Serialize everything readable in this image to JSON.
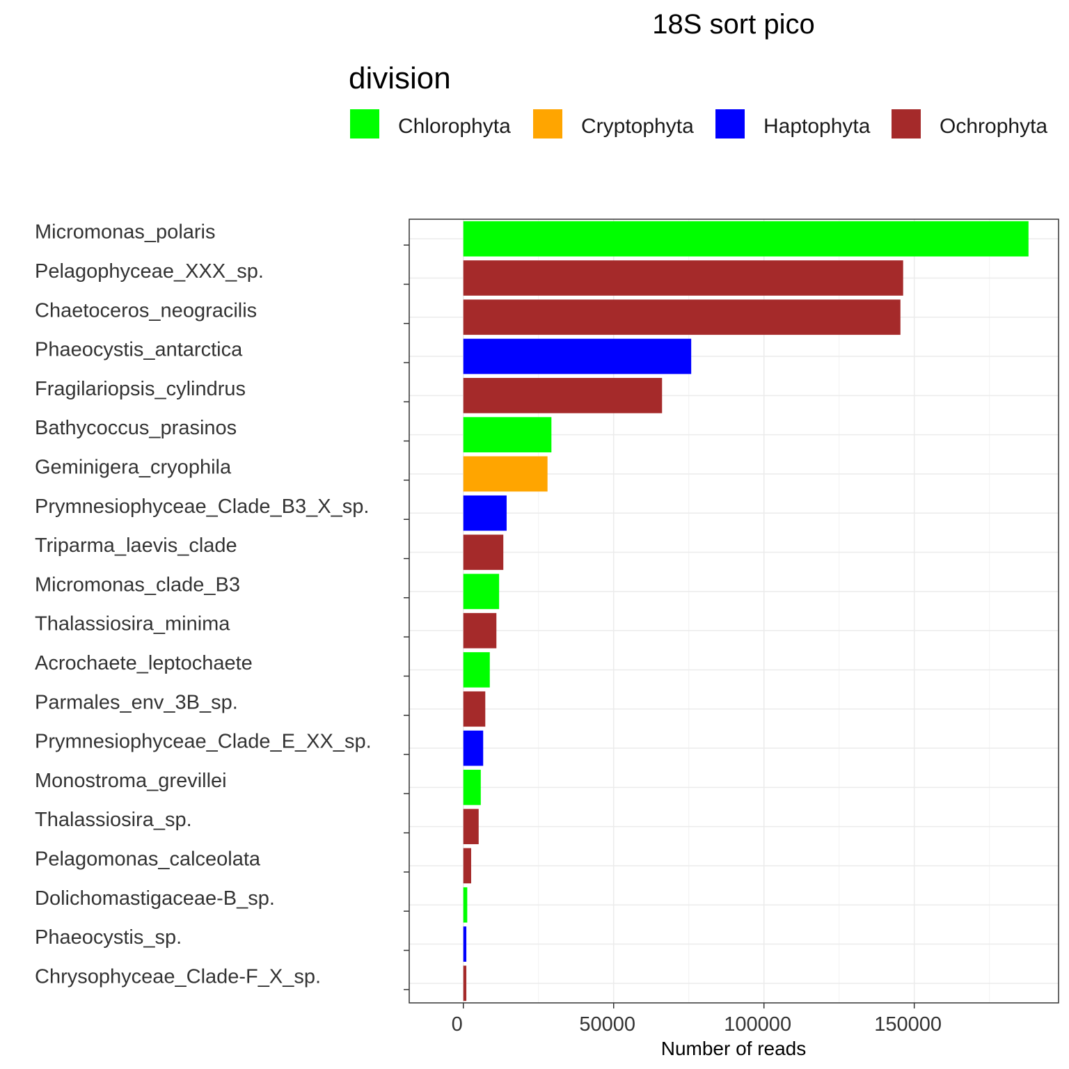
{
  "chart_data": {
    "type": "bar",
    "orientation": "horizontal",
    "title": "18S sort pico",
    "xlabel": "Number of reads",
    "ylabel": "",
    "xlim": [
      -18000,
      198000
    ],
    "x_ticks": [
      0,
      50000,
      100000,
      150000
    ],
    "x_tick_labels": [
      "0",
      "50000",
      "100000",
      "150000"
    ],
    "grid": true,
    "legend": {
      "title": "division",
      "position": "top",
      "entries": [
        {
          "name": "Chlorophyta",
          "color": "#00ff00"
        },
        {
          "name": "Cryptophyta",
          "color": "#ffa500"
        },
        {
          "name": "Haptophyta",
          "color": "#0000ff"
        },
        {
          "name": "Ochrophyta",
          "color": "#a52a2a"
        }
      ]
    },
    "categories": [
      "Micromonas_polaris",
      "Pelagophyceae_XXX_sp.",
      "Chaetoceros_neogracilis",
      "Phaeocystis_antarctica",
      "Fragilariopsis_cylindrus",
      "Bathycoccus_prasinos",
      "Geminigera_cryophila",
      "Prymnesiophyceae_Clade_B3_X_sp.",
      "Triparma_laevis_clade",
      "Micromonas_clade_B3",
      "Thalassiosira_minima",
      "Acrochaete_leptochaete",
      "Parmales_env_3B_sp.",
      "Prymnesiophyceae_Clade_E_XX_sp.",
      "Monostroma_grevillei",
      "Thalassiosira_sp.",
      "Pelagomonas_calceolata",
      "Dolichomastigaceae-B_sp.",
      "Phaeocystis_sp.",
      "Chrysophyceae_Clade-F_X_sp."
    ],
    "values": [
      188000,
      146300,
      145400,
      75800,
      66100,
      29300,
      28000,
      14400,
      13300,
      11900,
      11000,
      8800,
      7300,
      6600,
      5800,
      5100,
      2600,
      1300,
      1000,
      1000
    ],
    "divisions": [
      "Chlorophyta",
      "Ochrophyta",
      "Ochrophyta",
      "Haptophyta",
      "Ochrophyta",
      "Chlorophyta",
      "Cryptophyta",
      "Haptophyta",
      "Ochrophyta",
      "Chlorophyta",
      "Ochrophyta",
      "Chlorophyta",
      "Ochrophyta",
      "Haptophyta",
      "Chlorophyta",
      "Ochrophyta",
      "Ochrophyta",
      "Chlorophyta",
      "Haptophyta",
      "Ochrophyta"
    ]
  }
}
